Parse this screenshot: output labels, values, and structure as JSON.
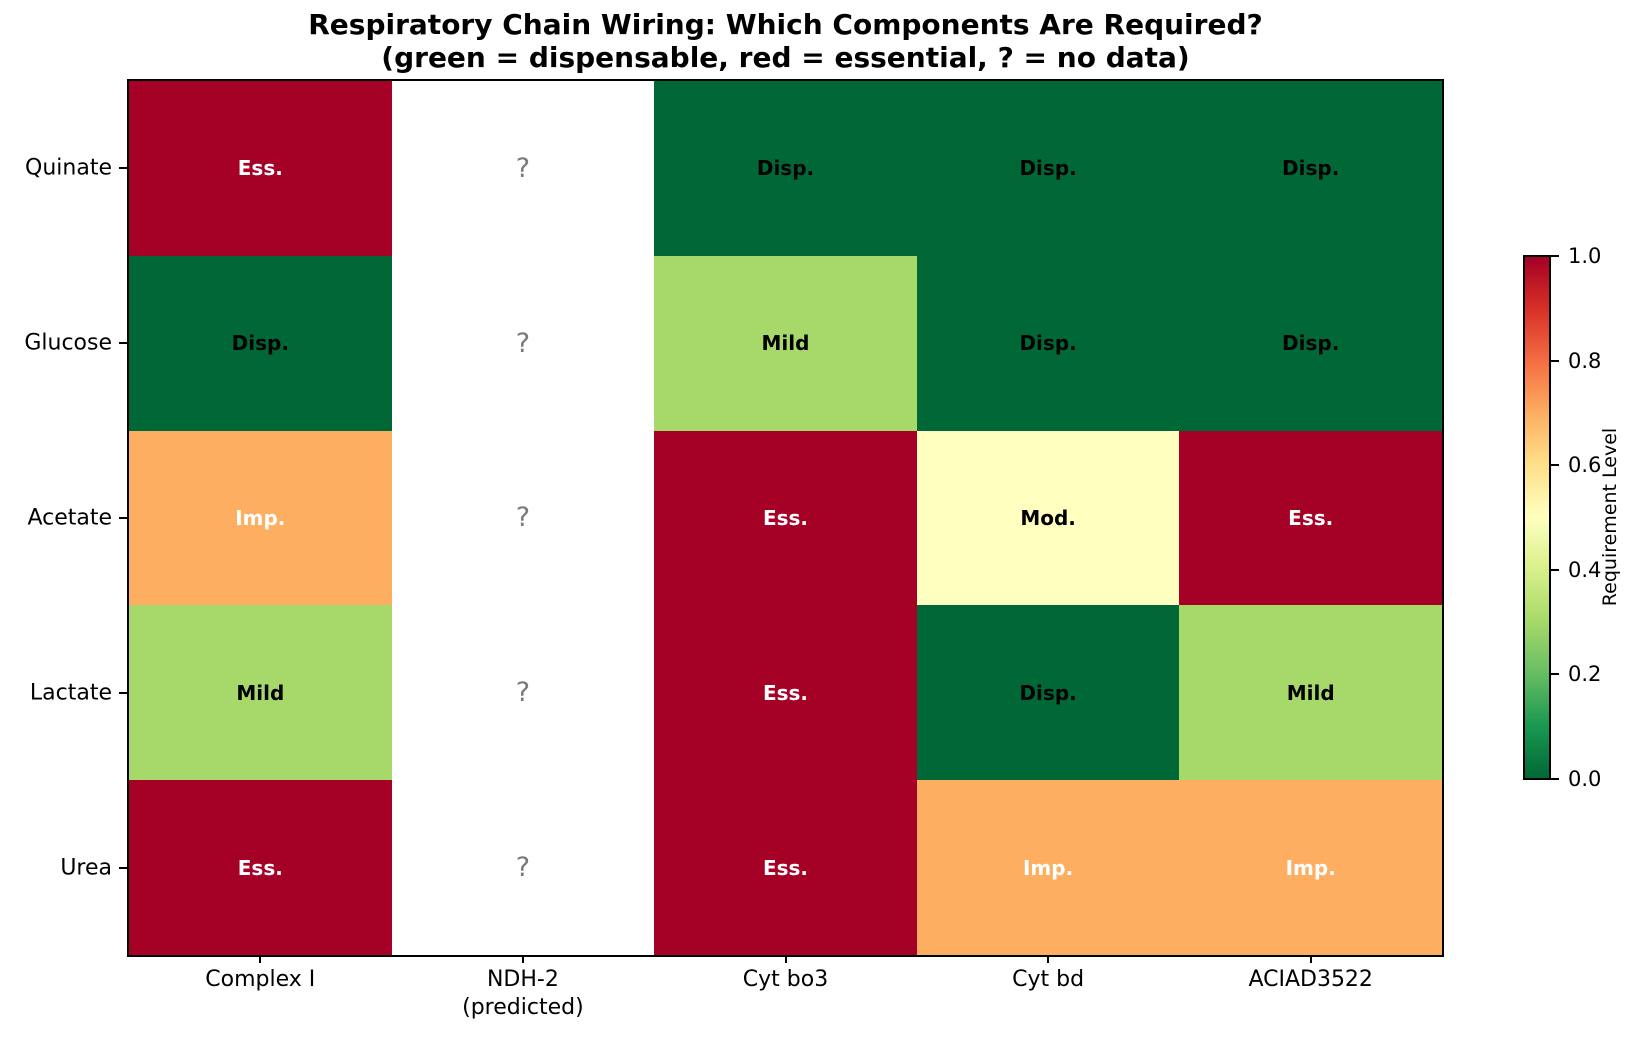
{
  "chart_data": {
    "type": "heatmap",
    "title": "Respiratory Chain Wiring: Which Components Are Required?",
    "subtitle": "(green = dispensable, red = essential, ? = no data)",
    "x_tick_labels": [
      "Complex I",
      "NDH-2\n(predicted)",
      "Cyt bo3",
      "Cyt bd",
      "ACIAD3522"
    ],
    "y_tick_labels": [
      "Quinate",
      "Glucose",
      "Acetate",
      "Lactate",
      "Urea"
    ],
    "values": [
      [
        1,
        null,
        0,
        0,
        0
      ],
      [
        0,
        null,
        0.3,
        0,
        0
      ],
      [
        0.7,
        null,
        1,
        0.5,
        1
      ],
      [
        0.3,
        null,
        1,
        0,
        0.3
      ],
      [
        1,
        null,
        1,
        0.7,
        0.7
      ]
    ],
    "cell_labels": [
      [
        "Ess.",
        "?",
        "Disp.",
        "Disp.",
        "Disp."
      ],
      [
        "Disp.",
        "?",
        "Mild",
        "Disp.",
        "Disp."
      ],
      [
        "Imp.",
        "?",
        "Ess.",
        "Mod.",
        "Ess."
      ],
      [
        "Mild",
        "?",
        "Ess.",
        "Disp.",
        "Mild"
      ],
      [
        "Ess.",
        "?",
        "Ess.",
        "Imp.",
        "Imp."
      ]
    ],
    "no_data_label": "?",
    "white_text_labels": [
      "Ess.",
      "Imp."
    ],
    "colormap": "RdYlGn_r",
    "value_colors": {
      "0": "#006837",
      "0.3": "#a6d96a",
      "0.5": "#ffffbf",
      "0.7": "#fdae61",
      "1": "#a50026"
    },
    "no_data_color": "#ffffff",
    "no_data_text_color": "#7a7a7a",
    "axis_color": "#000000",
    "grid": false,
    "colorbar": {
      "label": "Requirement Level",
      "tick_labels": [
        "1.0",
        "0.8",
        "0.6",
        "0.4",
        "0.2",
        "0.0"
      ],
      "range": [
        0.0,
        1.0
      ],
      "position": "right",
      "gradient_stops_bottom_to_top": [
        "#006837",
        "#1a9850",
        "#66bd63",
        "#a6d96a",
        "#d9ef8b",
        "#ffffbf",
        "#fee08b",
        "#fdae61",
        "#f46d43",
        "#d73027",
        "#a50026"
      ]
    }
  }
}
